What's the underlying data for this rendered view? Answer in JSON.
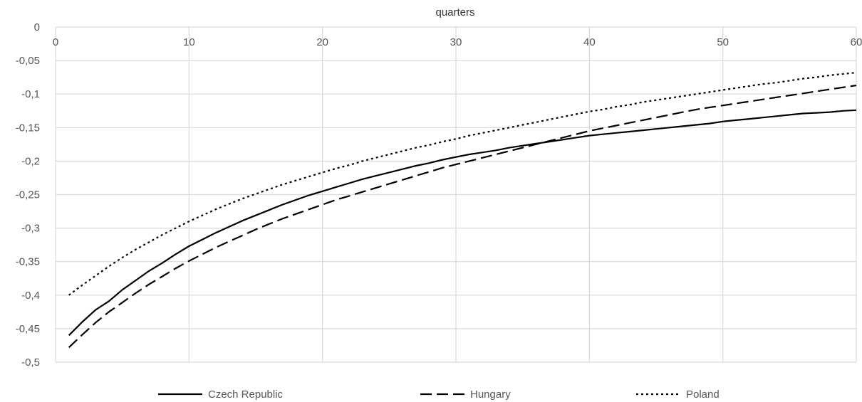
{
  "chart_data": {
    "type": "line",
    "title": "",
    "xlabel": "quarters",
    "ylabel": "",
    "x_axis_position": "top",
    "xlim": [
      0,
      60
    ],
    "ylim": [
      -0.5,
      0
    ],
    "x_ticks": [
      0,
      10,
      20,
      30,
      40,
      50,
      60
    ],
    "x_tick_labels": [
      "0",
      "10",
      "20",
      "30",
      "40",
      "50",
      "60"
    ],
    "y_ticks": [
      0,
      -0.05,
      -0.1,
      -0.15,
      -0.2,
      -0.25,
      -0.3,
      -0.35,
      -0.4,
      -0.45,
      -0.5
    ],
    "y_tick_labels": [
      "0",
      "-0,05",
      "-0,1",
      "-0,15",
      "-0,2",
      "-0,25",
      "-0,3",
      "-0,35",
      "-0,4",
      "-0,45",
      "-0,5"
    ],
    "grid": true,
    "legend_position": "bottom",
    "x": [
      1,
      2,
      3,
      4,
      5,
      6,
      7,
      8,
      9,
      10,
      11,
      12,
      13,
      14,
      15,
      16,
      17,
      18,
      19,
      20,
      21,
      22,
      23,
      24,
      25,
      26,
      27,
      28,
      29,
      30,
      31,
      32,
      33,
      34,
      35,
      36,
      37,
      38,
      39,
      40,
      41,
      42,
      43,
      44,
      45,
      46,
      47,
      48,
      49,
      50,
      51,
      52,
      53,
      54,
      55,
      56,
      57,
      58,
      59,
      60
    ],
    "series": [
      {
        "name": "Czech Republic",
        "color": "#000000",
        "dash": "solid",
        "values": [
          -0.46,
          -0.44,
          -0.422,
          -0.409,
          -0.392,
          -0.378,
          -0.364,
          -0.352,
          -0.339,
          -0.327,
          -0.317,
          -0.307,
          -0.298,
          -0.289,
          -0.281,
          -0.273,
          -0.265,
          -0.258,
          -0.251,
          -0.245,
          -0.239,
          -0.233,
          -0.227,
          -0.222,
          -0.217,
          -0.212,
          -0.207,
          -0.203,
          -0.198,
          -0.194,
          -0.19,
          -0.187,
          -0.184,
          -0.18,
          -0.177,
          -0.174,
          -0.171,
          -0.168,
          -0.165,
          -0.162,
          -0.16,
          -0.158,
          -0.156,
          -0.154,
          -0.152,
          -0.15,
          -0.148,
          -0.146,
          -0.144,
          -0.141,
          -0.139,
          -0.137,
          -0.135,
          -0.133,
          -0.131,
          -0.129,
          -0.128,
          -0.127,
          -0.125,
          -0.124
        ]
      },
      {
        "name": "Hungary",
        "color": "#000000",
        "dash": "long-dash",
        "values": [
          -0.478,
          -0.459,
          -0.441,
          -0.425,
          -0.411,
          -0.397,
          -0.384,
          -0.372,
          -0.36,
          -0.349,
          -0.339,
          -0.329,
          -0.32,
          -0.311,
          -0.302,
          -0.294,
          -0.286,
          -0.279,
          -0.272,
          -0.265,
          -0.258,
          -0.252,
          -0.246,
          -0.24,
          -0.234,
          -0.228,
          -0.222,
          -0.216,
          -0.21,
          -0.205,
          -0.2,
          -0.195,
          -0.19,
          -0.185,
          -0.18,
          -0.175,
          -0.17,
          -0.165,
          -0.16,
          -0.155,
          -0.151,
          -0.147,
          -0.143,
          -0.139,
          -0.135,
          -0.131,
          -0.127,
          -0.123,
          -0.12,
          -0.117,
          -0.114,
          -0.111,
          -0.108,
          -0.105,
          -0.102,
          -0.099,
          -0.096,
          -0.093,
          -0.09,
          -0.087
        ]
      },
      {
        "name": "Poland",
        "color": "#000000",
        "dash": "dotted",
        "values": [
          -0.4,
          -0.385,
          -0.371,
          -0.357,
          -0.344,
          -0.332,
          -0.321,
          -0.31,
          -0.3,
          -0.29,
          -0.281,
          -0.272,
          -0.264,
          -0.256,
          -0.249,
          -0.242,
          -0.235,
          -0.229,
          -0.223,
          -0.217,
          -0.211,
          -0.206,
          -0.2,
          -0.195,
          -0.19,
          -0.185,
          -0.18,
          -0.176,
          -0.171,
          -0.167,
          -0.162,
          -0.158,
          -0.154,
          -0.15,
          -0.146,
          -0.142,
          -0.138,
          -0.134,
          -0.13,
          -0.126,
          -0.123,
          -0.119,
          -0.116,
          -0.112,
          -0.109,
          -0.106,
          -0.103,
          -0.1,
          -0.097,
          -0.094,
          -0.091,
          -0.088,
          -0.085,
          -0.083,
          -0.08,
          -0.077,
          -0.075,
          -0.072,
          -0.07,
          -0.068
        ]
      }
    ]
  }
}
